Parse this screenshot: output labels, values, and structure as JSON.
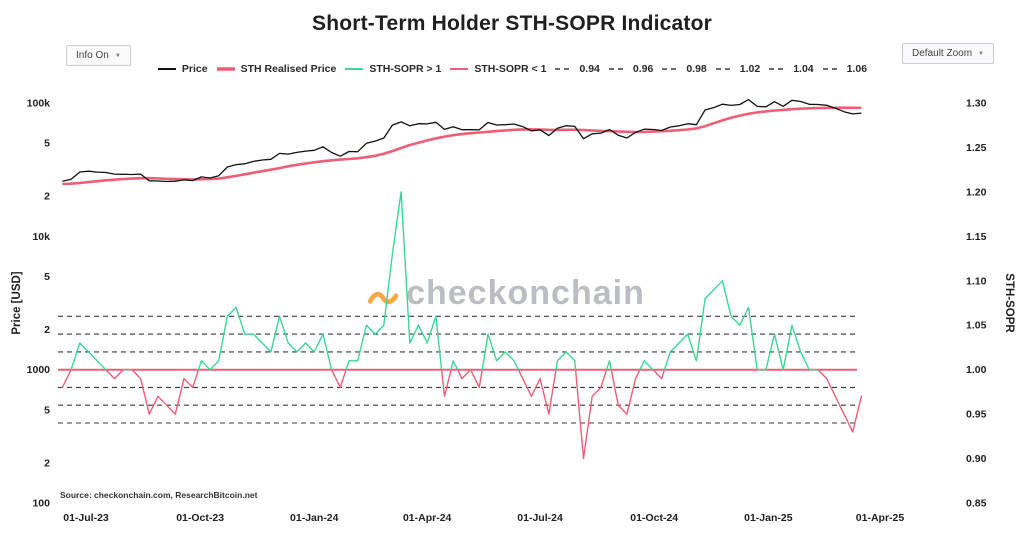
{
  "title": "Short-Term Holder STH-SOPR Indicator",
  "controls": {
    "info_button": "Info On",
    "zoom_button": "Default Zoom",
    "caret": "▼"
  },
  "watermark": {
    "text": "checkonchain"
  },
  "source": "Source: checkonchain.com, ResearchBitcoin.net",
  "colors": {
    "price": "#111111",
    "realised": "#ef5e78",
    "sopr_above": "#3dd598",
    "sopr_below": "#ef5e78",
    "reference": "#3a3a3a",
    "accent_orange": "#f7931a",
    "watermark": "#a9aeb5"
  },
  "chart_data": {
    "type": "line",
    "title": "Short-Term Holder STH-SOPR Indicator",
    "x_axis": {
      "ticks": [
        {
          "label": "01-Jul-23",
          "date": "2023-07-01"
        },
        {
          "label": "01-Oct-23",
          "date": "2023-10-01"
        },
        {
          "label": "01-Jan-24",
          "date": "2024-01-01"
        },
        {
          "label": "01-Apr-24",
          "date": "2024-04-01"
        },
        {
          "label": "01-Jul-24",
          "date": "2024-07-01"
        },
        {
          "label": "01-Oct-24",
          "date": "2024-10-01"
        },
        {
          "label": "01-Jan-25",
          "date": "2025-01-01"
        },
        {
          "label": "01-Apr-25",
          "date": "2025-04-01"
        }
      ]
    },
    "price_axis": {
      "title": "Price [USD]",
      "scale": "log",
      "min": 100,
      "max": 100000,
      "ticks": [
        {
          "label": "100k",
          "value": 100000
        },
        {
          "label": "5",
          "value": 50000
        },
        {
          "label": "2",
          "value": 20000
        },
        {
          "label": "10k",
          "value": 10000
        },
        {
          "label": "5",
          "value": 5000
        },
        {
          "label": "2",
          "value": 2000
        },
        {
          "label": "1000",
          "value": 1000
        },
        {
          "label": "5",
          "value": 500
        },
        {
          "label": "2",
          "value": 200
        },
        {
          "label": "100",
          "value": 100
        }
      ]
    },
    "sopr_axis": {
      "title": "STH-SOPR",
      "min": 0.85,
      "max": 1.3,
      "ticks": [
        {
          "label": "1.30",
          "value": 1.3
        },
        {
          "label": "1.25",
          "value": 1.25
        },
        {
          "label": "1.20",
          "value": 1.2
        },
        {
          "label": "1.15",
          "value": 1.15
        },
        {
          "label": "1.10",
          "value": 1.1
        },
        {
          "label": "1.05",
          "value": 1.05
        },
        {
          "label": "1.00",
          "value": 1.0
        },
        {
          "label": "0.95",
          "value": 0.95
        },
        {
          "label": "0.90",
          "value": 0.9
        },
        {
          "label": "0.85",
          "value": 0.85
        }
      ]
    },
    "legend": [
      {
        "label": "Price",
        "color": "#111111",
        "dash": "solid",
        "width": 2
      },
      {
        "label": "STH Realised Price",
        "color": "#ef5e78",
        "dash": "solid",
        "width": 3.5
      },
      {
        "label": "STH-SOPR > 1",
        "color": "#3dd598",
        "dash": "solid",
        "width": 2
      },
      {
        "label": "STH-SOPR < 1",
        "color": "#ef5e78",
        "dash": "solid",
        "width": 2
      },
      {
        "label": "0.94",
        "color": "#3a3a3a",
        "dash": "dashed",
        "width": 1.5
      },
      {
        "label": "0.96",
        "color": "#3a3a3a",
        "dash": "dashed",
        "width": 1.5
      },
      {
        "label": "0.98",
        "color": "#3a3a3a",
        "dash": "dashed",
        "width": 1.5
      },
      {
        "label": "1.02",
        "color": "#3a3a3a",
        "dash": "dashed",
        "width": 1.5
      },
      {
        "label": "1.04",
        "color": "#3a3a3a",
        "dash": "dashed",
        "width": 1.5
      },
      {
        "label": "1.06",
        "color": "#3a3a3a",
        "dash": "dashed",
        "width": 1.5
      }
    ],
    "reference_lines": {
      "solid": [
        1.0
      ],
      "dashed": [
        0.94,
        0.96,
        0.98,
        1.02,
        1.04,
        1.06
      ]
    },
    "start_date": "2023-06-12",
    "interval_days": 7,
    "series": [
      {
        "name": "Price",
        "axis": "price",
        "color": "#111111",
        "values": [
          25900,
          26800,
          30400,
          30800,
          30300,
          30100,
          29300,
          29200,
          29100,
          29300,
          26100,
          26000,
          25800,
          25900,
          26500,
          26200,
          27900,
          27400,
          28500,
          33100,
          34500,
          35000,
          36500,
          37400,
          37800,
          41900,
          41400,
          42600,
          43600,
          44200,
          46900,
          42500,
          39900,
          43300,
          43100,
          49900,
          51800,
          54500,
          68300,
          72100,
          67500,
          69900,
          69700,
          71600,
          63400,
          66400,
          63100,
          63200,
          62900,
          71400,
          68400,
          68800,
          69600,
          66500,
          61800,
          62900,
          57000,
          64700,
          67600,
          66800,
          54000,
          58700,
          59500,
          63200,
          57300,
          54600,
          60300,
          63600,
          63300,
          62200,
          66100,
          67400,
          69900,
          68700,
          88700,
          92300,
          97900,
          95900,
          97400,
          106100,
          94300,
          93700,
          102200,
          94500,
          104700,
          102600,
          97700,
          97400,
          96100,
          91400,
          86000,
          82900,
          84000
        ]
      },
      {
        "name": "STH Realised Price",
        "axis": "price",
        "color": "#ef5e78",
        "values": [
          24700,
          24800,
          25100,
          25500,
          25900,
          26300,
          26600,
          26900,
          27100,
          27300,
          27300,
          27200,
          27000,
          26900,
          26800,
          26700,
          26800,
          26900,
          27100,
          27700,
          28400,
          29200,
          30000,
          30800,
          31600,
          32500,
          33500,
          34400,
          35200,
          35900,
          36600,
          37200,
          37600,
          38000,
          38500,
          39200,
          40200,
          41600,
          43600,
          46000,
          48400,
          50400,
          52400,
          54400,
          55900,
          57300,
          58400,
          59400,
          60100,
          60800,
          61500,
          62300,
          63000,
          63400,
          63500,
          63300,
          63000,
          62800,
          62900,
          63000,
          62700,
          62200,
          61800,
          61500,
          61100,
          60800,
          60600,
          60700,
          61000,
          61400,
          61900,
          62500,
          63300,
          64500,
          67000,
          70500,
          74000,
          77500,
          80500,
          83000,
          85000,
          86500,
          87800,
          88800,
          89800,
          90600,
          91200,
          91600,
          91900,
          92100,
          92200,
          92100,
          92000
        ]
      },
      {
        "name": "STH-SOPR",
        "axis": "sopr",
        "threshold": 1.0,
        "color_above": "#3dd598",
        "color_below": "#ef5e78",
        "values": [
          0.98,
          1.0,
          1.03,
          1.02,
          1.01,
          1.0,
          0.99,
          1.0,
          1.0,
          0.99,
          0.95,
          0.97,
          0.96,
          0.95,
          0.99,
          0.98,
          1.01,
          1.0,
          1.01,
          1.06,
          1.07,
          1.04,
          1.04,
          1.03,
          1.02,
          1.06,
          1.03,
          1.02,
          1.03,
          1.02,
          1.04,
          1.0,
          0.98,
          1.01,
          1.01,
          1.05,
          1.04,
          1.05,
          1.13,
          1.2,
          1.03,
          1.05,
          1.03,
          1.06,
          0.97,
          1.01,
          0.99,
          1.0,
          0.98,
          1.04,
          1.01,
          1.02,
          1.01,
          0.99,
          0.97,
          0.99,
          0.95,
          1.01,
          1.02,
          1.01,
          0.9,
          0.97,
          0.98,
          1.01,
          0.96,
          0.95,
          0.99,
          1.01,
          1.0,
          0.99,
          1.02,
          1.03,
          1.04,
          1.01,
          1.08,
          1.09,
          1.1,
          1.06,
          1.05,
          1.07,
          1.0,
          1.0,
          1.04,
          1.0,
          1.05,
          1.02,
          1.0,
          1.0,
          0.99,
          0.97,
          0.95,
          0.93,
          0.97
        ]
      }
    ]
  }
}
